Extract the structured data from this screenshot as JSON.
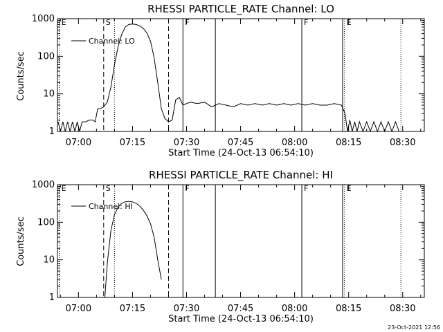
{
  "footer": {
    "timestamp": "23-Oct-2021 12:56"
  },
  "chart_data": [
    {
      "type": "line",
      "title": "RHESSI PARTICLE_RATE Channel: LO",
      "xlabel": "Start Time (24-Oct-13 06:54:10)",
      "ylabel": "Counts/sec",
      "y_scale": "log",
      "ylim": [
        1,
        1000
      ],
      "xlim": [
        "06:54:10",
        "08:36:00"
      ],
      "x_ticks": [
        "07:00",
        "07:15",
        "07:30",
        "07:45",
        "08:00",
        "08:15",
        "08:30"
      ],
      "y_ticks": [
        "1",
        "10",
        "100",
        "1000"
      ],
      "legend": {
        "position": "top-left",
        "entries": [
          "Channel: LO"
        ]
      },
      "series": [
        {
          "name": "Channel: LO",
          "points": [
            [
              "06:54:20",
              1.8
            ],
            [
              "06:55:00",
              1.0
            ],
            [
              "06:55:40",
              1.8
            ],
            [
              "06:56:20",
              1.0
            ],
            [
              "06:57:00",
              1.8
            ],
            [
              "06:57:40",
              1.0
            ],
            [
              "06:58:20",
              1.8
            ],
            [
              "06:59:00",
              1.0
            ],
            [
              "06:59:40",
              1.8
            ],
            [
              "07:00:20",
              1.0
            ],
            [
              "07:01:00",
              1.8
            ],
            [
              "07:02:00",
              1.8
            ],
            [
              "07:03:00",
              2.0
            ],
            [
              "07:04:00",
              2.0
            ],
            [
              "07:04:40",
              1.8
            ],
            [
              "07:05:20",
              4.0
            ],
            [
              "07:06:00",
              4.0
            ],
            [
              "07:07:00",
              4.5
            ],
            [
              "07:08:00",
              6.0
            ],
            [
              "07:09:00",
              15
            ],
            [
              "07:10:00",
              60
            ],
            [
              "07:11:00",
              180
            ],
            [
              "07:12:00",
              380
            ],
            [
              "07:13:00",
              600
            ],
            [
              "07:14:00",
              700
            ],
            [
              "07:15:00",
              720
            ],
            [
              "07:16:00",
              700
            ],
            [
              "07:17:00",
              650
            ],
            [
              "07:18:00",
              550
            ],
            [
              "07:19:00",
              420
            ],
            [
              "07:20:00",
              250
            ],
            [
              "07:21:00",
              90
            ],
            [
              "07:22:00",
              20
            ],
            [
              "07:23:00",
              4.0
            ],
            [
              "07:24:00",
              2.2
            ],
            [
              "07:25:00",
              1.8
            ],
            [
              "07:26:00",
              2.0
            ],
            [
              "07:27:00",
              7.0
            ],
            [
              "07:28:00",
              8.0
            ],
            [
              "07:29:00",
              5.0
            ],
            [
              "07:31:00",
              6.0
            ],
            [
              "07:33:00",
              5.5
            ],
            [
              "07:35:00",
              6.0
            ],
            [
              "07:37:00",
              4.5
            ],
            [
              "07:39:00",
              5.5
            ],
            [
              "07:41:00",
              5.0
            ],
            [
              "07:43:00",
              4.5
            ],
            [
              "07:45:00",
              5.5
            ],
            [
              "07:47:00",
              5.0
            ],
            [
              "07:49:00",
              5.5
            ],
            [
              "07:51:00",
              5.0
            ],
            [
              "07:53:00",
              5.5
            ],
            [
              "07:55:00",
              5.0
            ],
            [
              "07:57:00",
              5.5
            ],
            [
              "07:59:00",
              5.0
            ],
            [
              "08:01:00",
              5.5
            ],
            [
              "08:03:00",
              5.0
            ],
            [
              "08:05:00",
              5.5
            ],
            [
              "08:07:00",
              5.0
            ],
            [
              "08:09:00",
              5.0
            ],
            [
              "08:11:00",
              5.5
            ],
            [
              "08:13:00",
              5.0
            ],
            [
              "08:14:00",
              3.0
            ],
            [
              "08:14:40",
              1.0
            ],
            [
              "08:15:20",
              2.0
            ],
            [
              "08:16:00",
              1.0
            ],
            [
              "08:16:40",
              1.8
            ],
            [
              "08:17:20",
              1.0
            ],
            [
              "08:18:00",
              1.8
            ],
            [
              "08:19:00",
              1.0
            ],
            [
              "08:20:00",
              1.8
            ],
            [
              "08:21:00",
              1.0
            ],
            [
              "08:22:00",
              1.8
            ],
            [
              "08:23:00",
              1.0
            ],
            [
              "08:24:00",
              1.8
            ],
            [
              "08:25:00",
              1.0
            ],
            [
              "08:26:00",
              1.8
            ],
            [
              "08:27:00",
              1.0
            ],
            [
              "08:28:00",
              1.8
            ],
            [
              "08:29:00",
              1.0
            ]
          ]
        }
      ],
      "markers": [
        {
          "time": "06:54:40",
          "label": "E",
          "style": "dotted"
        },
        {
          "time": "07:07:00",
          "label": "S",
          "style": "dashed"
        },
        {
          "time": "07:10:00",
          "label": "",
          "style": "dotted"
        },
        {
          "time": "07:25:00",
          "label": "",
          "style": "dashed"
        },
        {
          "time": "07:29:00",
          "label": "F",
          "style": "solid"
        },
        {
          "time": "07:38:00",
          "label": "",
          "style": "solid"
        },
        {
          "time": "08:02:00",
          "label": "F",
          "style": "solid"
        },
        {
          "time": "08:13:20",
          "label": "",
          "style": "solid"
        },
        {
          "time": "08:13:50",
          "label": "E",
          "style": "dotted"
        },
        {
          "time": "08:29:30",
          "label": "",
          "style": "dotted"
        }
      ]
    },
    {
      "type": "line",
      "title": "RHESSI PARTICLE_RATE Channel: HI",
      "xlabel": "Start Time (24-Oct-13 06:54:10)",
      "ylabel": "Counts/sec",
      "y_scale": "log",
      "ylim": [
        1,
        1000
      ],
      "xlim": [
        "06:54:10",
        "08:36:00"
      ],
      "x_ticks": [
        "07:00",
        "07:15",
        "07:30",
        "07:45",
        "08:00",
        "08:15",
        "08:30"
      ],
      "y_ticks": [
        "1",
        "10",
        "100",
        "1000"
      ],
      "legend": {
        "position": "top-left",
        "entries": [
          "Channel: HI"
        ]
      },
      "series": [
        {
          "name": "Channel: HI",
          "points": [
            [
              "07:07:20",
              1.0
            ],
            [
              "07:08:00",
              8.0
            ],
            [
              "07:09:00",
              60
            ],
            [
              "07:10:00",
              160
            ],
            [
              "07:11:00",
              250
            ],
            [
              "07:12:00",
              320
            ],
            [
              "07:13:00",
              350
            ],
            [
              "07:14:00",
              360
            ],
            [
              "07:15:00",
              350
            ],
            [
              "07:16:00",
              320
            ],
            [
              "07:17:00",
              270
            ],
            [
              "07:18:00",
              210
            ],
            [
              "07:19:00",
              150
            ],
            [
              "07:20:00",
              90
            ],
            [
              "07:21:00",
              40
            ],
            [
              "07:22:00",
              10
            ],
            [
              "07:23:00",
              3.0
            ]
          ]
        }
      ],
      "markers": [
        {
          "time": "06:54:40",
          "label": "E",
          "style": "dotted"
        },
        {
          "time": "07:07:00",
          "label": "S",
          "style": "dashed"
        },
        {
          "time": "07:10:00",
          "label": "",
          "style": "dotted"
        },
        {
          "time": "07:25:00",
          "label": "",
          "style": "dashed"
        },
        {
          "time": "07:29:00",
          "label": "F",
          "style": "solid"
        },
        {
          "time": "07:38:00",
          "label": "",
          "style": "solid"
        },
        {
          "time": "08:02:00",
          "label": "F",
          "style": "solid"
        },
        {
          "time": "08:13:20",
          "label": "",
          "style": "solid"
        },
        {
          "time": "08:13:50",
          "label": "E",
          "style": "dotted"
        },
        {
          "time": "08:29:30",
          "label": "",
          "style": "dotted"
        }
      ]
    }
  ]
}
